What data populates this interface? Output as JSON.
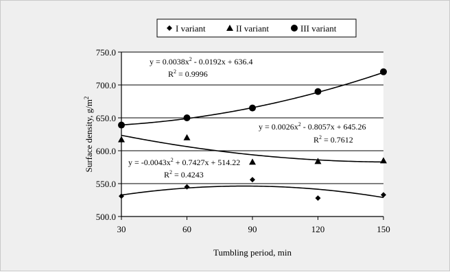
{
  "chart_data": {
    "type": "scatter",
    "title": "",
    "xlabel": "Tumbling period, min",
    "ylabel": "Surface density, g/m",
    "ylabel_superscript": "2",
    "xlim": [
      30,
      150
    ],
    "ylim": [
      500,
      750
    ],
    "x_ticks": [
      30,
      60,
      90,
      120,
      150
    ],
    "x_tick_labels": [
      "30",
      "60",
      "90",
      "120",
      "150"
    ],
    "y_ticks": [
      500,
      550,
      600,
      650,
      700,
      750
    ],
    "y_tick_labels": [
      "500.0",
      "550.0",
      "600.0",
      "650.0",
      "700.0",
      "750.0"
    ],
    "grid": "horizontal",
    "legend_position": "top",
    "series": [
      {
        "name": "I variant",
        "marker": "diamond",
        "x": [
          30,
          60,
          90,
          120,
          150
        ],
        "y": [
          531,
          545,
          556,
          528,
          533
        ],
        "trend": {
          "coefficients": [
            -0.0043,
            0.7427,
            514.22
          ],
          "equation_parts": [
            "y = -0.0043x",
            "2",
            " + 0.7427x + 514.22"
          ],
          "r2_parts": [
            "R",
            "2",
            " = 0.4243"
          ]
        }
      },
      {
        "name": "II variant",
        "marker": "triangle",
        "x": [
          30,
          60,
          90,
          120,
          150
        ],
        "y": [
          617,
          620,
          583,
          584,
          585
        ],
        "trend": {
          "coefficients": [
            0.0026,
            -0.8057,
            645.26
          ],
          "equation_parts": [
            "y = 0.0026x",
            "2",
            " - 0.8057x + 645.26"
          ],
          "r2_parts": [
            "R",
            "2",
            " = 0.7612"
          ]
        }
      },
      {
        "name": "III variant",
        "marker": "circle",
        "x": [
          30,
          60,
          90,
          120,
          150
        ],
        "y": [
          639,
          650,
          665,
          690,
          720
        ],
        "trend": {
          "coefficients": [
            0.0038,
            -0.0192,
            636.4
          ],
          "equation_parts": [
            "y = 0.0038x",
            "2",
            " - 0.0192x + 636.4"
          ],
          "r2_parts": [
            "R",
            "2",
            " = 0.9996"
          ]
        }
      }
    ]
  }
}
